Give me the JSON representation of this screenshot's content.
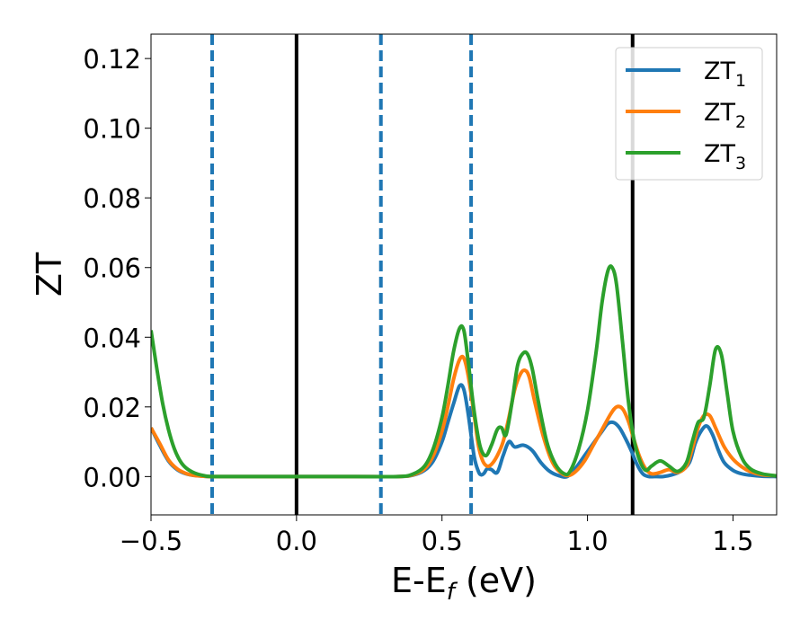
{
  "chart_data": {
    "type": "line",
    "title": "",
    "xlabel": "E-E",
    "xlabel_sub": "f",
    "xlabel_unit": " (eV)",
    "ylabel": "ZT",
    "xlim": [
      -0.5,
      1.65
    ],
    "ylim": [
      -0.011,
      0.127
    ],
    "xticks": [
      -0.5,
      0.0,
      0.5,
      1.0,
      1.5
    ],
    "xtick_labels": [
      "−0.5",
      "0.0",
      "0.5",
      "1.0",
      "1.5"
    ],
    "yticks": [
      0.0,
      0.02,
      0.04,
      0.06,
      0.08,
      0.1,
      0.12
    ],
    "ytick_labels": [
      "0.00",
      "0.02",
      "0.04",
      "0.06",
      "0.08",
      "0.10",
      "0.12"
    ],
    "grid": false,
    "legend_position": "top-right",
    "vlines_solid": [
      0.0,
      1.155
    ],
    "vlines_dashed": [
      -0.29,
      0.29,
      0.6
    ],
    "series": [
      {
        "name": "ZT",
        "name_sub": "1",
        "color": "#1f77b4",
        "x": [
          -0.5,
          -0.47,
          -0.44,
          -0.41,
          -0.38,
          -0.35,
          -0.32,
          -0.29,
          -0.2,
          0.0,
          0.2,
          0.35,
          0.4,
          0.44,
          0.47,
          0.5,
          0.52,
          0.54,
          0.56,
          0.575,
          0.59,
          0.61,
          0.625,
          0.635,
          0.645,
          0.655,
          0.67,
          0.69,
          0.71,
          0.73,
          0.75,
          0.78,
          0.81,
          0.84,
          0.87,
          0.9,
          0.93,
          0.96,
          0.99,
          1.02,
          1.05,
          1.07,
          1.09,
          1.11,
          1.13,
          1.15,
          1.17,
          1.19,
          1.21,
          1.23,
          1.26,
          1.29,
          1.32,
          1.35,
          1.37,
          1.39,
          1.41,
          1.43,
          1.45,
          1.47,
          1.5,
          1.53,
          1.56,
          1.6,
          1.65
        ],
        "y": [
          0.014,
          0.009,
          0.0045,
          0.002,
          0.0008,
          0.0003,
          0.0001,
          0.0,
          0.0,
          0.0,
          0.0,
          0.0,
          0.0004,
          0.0018,
          0.0045,
          0.01,
          0.0155,
          0.021,
          0.026,
          0.025,
          0.018,
          0.006,
          0.0015,
          0.0005,
          0.001,
          0.0022,
          0.002,
          0.0012,
          0.006,
          0.01,
          0.0085,
          0.009,
          0.0075,
          0.004,
          0.0015,
          0.0003,
          0.0,
          0.0025,
          0.006,
          0.0095,
          0.013,
          0.0152,
          0.0155,
          0.014,
          0.011,
          0.0075,
          0.0035,
          0.0008,
          0.0,
          0.0,
          0.0,
          0.0005,
          0.0015,
          0.004,
          0.0095,
          0.013,
          0.0145,
          0.012,
          0.0075,
          0.004,
          0.0018,
          0.0008,
          0.0004,
          0.0001,
          0.0
        ]
      },
      {
        "name": "ZT",
        "name_sub": "2",
        "color": "#ff7f0e",
        "x": [
          -0.5,
          -0.47,
          -0.44,
          -0.41,
          -0.38,
          -0.35,
          -0.32,
          -0.29,
          -0.2,
          0.0,
          0.2,
          0.35,
          0.4,
          0.44,
          0.47,
          0.5,
          0.52,
          0.54,
          0.56,
          0.575,
          0.59,
          0.61,
          0.625,
          0.64,
          0.655,
          0.67,
          0.69,
          0.71,
          0.73,
          0.75,
          0.77,
          0.785,
          0.8,
          0.82,
          0.85,
          0.88,
          0.91,
          0.935,
          0.96,
          0.99,
          1.02,
          1.05,
          1.08,
          1.1,
          1.12,
          1.14,
          1.16,
          1.18,
          1.2,
          1.22,
          1.25,
          1.28,
          1.31,
          1.34,
          1.36,
          1.38,
          1.4,
          1.42,
          1.44,
          1.47,
          1.5,
          1.53,
          1.56,
          1.6,
          1.65
        ],
        "y": [
          0.014,
          0.0095,
          0.0048,
          0.0022,
          0.0009,
          0.0003,
          0.0001,
          0.0,
          0.0,
          0.0,
          0.0,
          0.0,
          0.0005,
          0.0022,
          0.006,
          0.013,
          0.02,
          0.028,
          0.0335,
          0.034,
          0.029,
          0.018,
          0.009,
          0.0045,
          0.003,
          0.0035,
          0.006,
          0.01,
          0.017,
          0.025,
          0.0295,
          0.0305,
          0.0285,
          0.021,
          0.011,
          0.004,
          0.001,
          0.0003,
          0.0015,
          0.0045,
          0.009,
          0.0135,
          0.018,
          0.02,
          0.0195,
          0.016,
          0.0105,
          0.0055,
          0.0022,
          0.0008,
          0.0012,
          0.002,
          0.0012,
          0.003,
          0.008,
          0.014,
          0.0175,
          0.0175,
          0.014,
          0.0085,
          0.005,
          0.0028,
          0.0014,
          0.0005,
          0.0002
        ]
      },
      {
        "name": "ZT",
        "name_sub": "3",
        "color": "#2ca02c",
        "x": [
          -0.5,
          -0.48,
          -0.46,
          -0.44,
          -0.42,
          -0.4,
          -0.38,
          -0.35,
          -0.32,
          -0.29,
          -0.2,
          0.0,
          0.2,
          0.35,
          0.4,
          0.44,
          0.47,
          0.5,
          0.52,
          0.54,
          0.56,
          0.575,
          0.59,
          0.61,
          0.63,
          0.65,
          0.67,
          0.69,
          0.705,
          0.72,
          0.74,
          0.76,
          0.78,
          0.795,
          0.81,
          0.83,
          0.86,
          0.89,
          0.92,
          0.94,
          0.97,
          1.0,
          1.03,
          1.05,
          1.07,
          1.085,
          1.1,
          1.12,
          1.14,
          1.16,
          1.18,
          1.2,
          1.22,
          1.25,
          1.28,
          1.31,
          1.34,
          1.36,
          1.38,
          1.4,
          1.42,
          1.44,
          1.46,
          1.48,
          1.5,
          1.53,
          1.56,
          1.6,
          1.65
        ],
        "y": [
          0.042,
          0.031,
          0.021,
          0.0135,
          0.008,
          0.0045,
          0.0025,
          0.001,
          0.0003,
          0.0,
          0.0,
          0.0,
          0.0,
          0.0,
          0.0007,
          0.003,
          0.008,
          0.017,
          0.026,
          0.036,
          0.0425,
          0.042,
          0.033,
          0.019,
          0.009,
          0.006,
          0.009,
          0.0135,
          0.014,
          0.012,
          0.021,
          0.032,
          0.0355,
          0.035,
          0.031,
          0.022,
          0.01,
          0.0035,
          0.0008,
          0.0015,
          0.008,
          0.019,
          0.036,
          0.05,
          0.059,
          0.06,
          0.055,
          0.039,
          0.022,
          0.0105,
          0.0045,
          0.0018,
          0.003,
          0.0045,
          0.003,
          0.0015,
          0.004,
          0.01,
          0.0155,
          0.017,
          0.026,
          0.0365,
          0.035,
          0.024,
          0.013,
          0.0055,
          0.0022,
          0.0008,
          0.0002
        ]
      }
    ]
  }
}
